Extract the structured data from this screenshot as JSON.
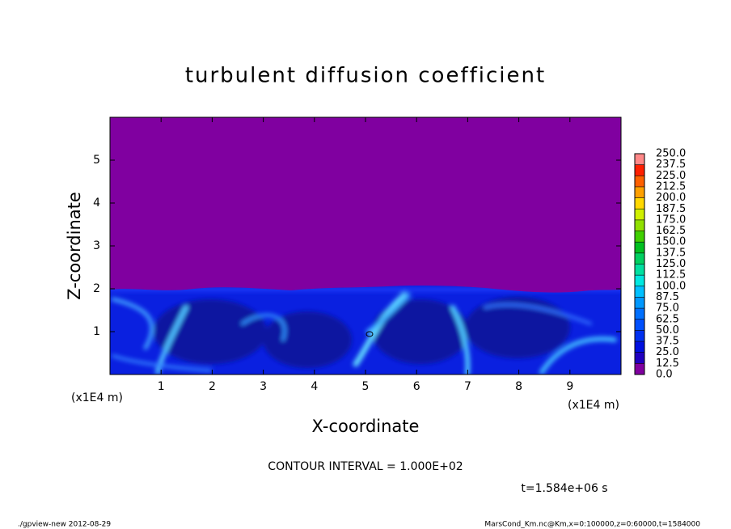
{
  "chart_data": {
    "type": "contour",
    "title": "turbulent diffusion coefficient",
    "x_label": "X-coordinate",
    "y_label": "Z-coordinate",
    "x_unit": "(x1E4 m)",
    "y_unit": "(x1E4 m)",
    "xlim": [
      0,
      10
    ],
    "ylim": [
      0,
      6
    ],
    "xticks": [
      1,
      2,
      3,
      4,
      5,
      6,
      7,
      8,
      9
    ],
    "yticks": [
      1,
      2,
      3,
      4,
      5
    ],
    "colorbar": {
      "levels": [
        {
          "value": 0,
          "label": "0.0"
        },
        {
          "value": 12.5,
          "label": "12.5"
        },
        {
          "value": 25,
          "label": "25.0"
        },
        {
          "value": 37.5,
          "label": "37.5"
        },
        {
          "value": 50,
          "label": "50.0"
        },
        {
          "value": 62.5,
          "label": "62.5"
        },
        {
          "value": 75,
          "label": "75.0"
        },
        {
          "value": 87.5,
          "label": "87.5"
        },
        {
          "value": 100,
          "label": "100.0"
        },
        {
          "value": 112.5,
          "label": "112.5"
        },
        {
          "value": 125,
          "label": "125.0"
        },
        {
          "value": 137.5,
          "label": "137.5"
        },
        {
          "value": 150,
          "label": "150.0"
        },
        {
          "value": 162.5,
          "label": "162.5"
        },
        {
          "value": 175,
          "label": "175.0"
        },
        {
          "value": 187.5,
          "label": "187.5"
        },
        {
          "value": 200,
          "label": "200.0"
        },
        {
          "value": 212.5,
          "label": "212.5"
        },
        {
          "value": 225,
          "label": "225.0"
        },
        {
          "value": 237.5,
          "label": "237.5"
        },
        {
          "value": 250,
          "label": "250.0"
        }
      ],
      "colors": [
        "#8000a0",
        "#2000c0",
        "#0010e0",
        "#0030f0",
        "#0050ff",
        "#0070ff",
        "#0098ff",
        "#00c0ff",
        "#00e8e0",
        "#00e0a0",
        "#00d060",
        "#00c020",
        "#40d000",
        "#90e000",
        "#d0f000",
        "#ffd800",
        "#ffa000",
        "#ff6000",
        "#ff2000",
        "#ff8888"
      ]
    },
    "contour_interval": "CONTOUR INTERVAL = 1.000E+02",
    "time": "t=1.584e+06 s",
    "footer_left": "./gpview-new  2012-08-29",
    "footer_right": "MarsCond_Km.nc@Km,x=0:100000,z=0:60000,t=1584000"
  }
}
